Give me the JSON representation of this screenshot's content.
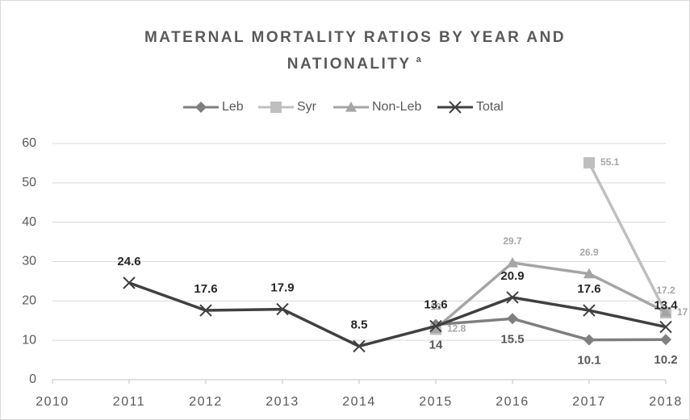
{
  "chart_data": {
    "type": "line",
    "title": [
      "MATERNAL MORTALITY RATIOS BY YEAR AND",
      "NATIONALITY"
    ],
    "title_note": "a",
    "x": [
      2011,
      2012,
      2013,
      2014,
      2015,
      2016,
      2017,
      2018
    ],
    "xlim": [
      2010,
      2018
    ],
    "xticks": [
      2010,
      2011,
      2012,
      2013,
      2014,
      2015,
      2016,
      2017,
      2018
    ],
    "ylim": [
      0,
      60
    ],
    "yticks": [
      0,
      10,
      20,
      30,
      40,
      50,
      60
    ],
    "grid": true,
    "legend": "top",
    "series": [
      {
        "name": "Leb",
        "color": "#7f7f7f",
        "marker": "diamond",
        "label_pos": "below",
        "label_color": "#595959",
        "values": [
          null,
          null,
          null,
          null,
          14,
          15.5,
          10.1,
          10.2
        ]
      },
      {
        "name": "Syr",
        "color": "#bfbfbf",
        "marker": "square",
        "label_pos": "right",
        "label_color": "#a6a6a6",
        "values": [
          null,
          null,
          null,
          null,
          12.8,
          null,
          55.1,
          17
        ]
      },
      {
        "name": "Non-Leb",
        "color": "#a5a5a5",
        "marker": "triangle",
        "label_pos": "above",
        "label_color": "#a6a6a6",
        "values": [
          null,
          null,
          null,
          null,
          13,
          29.7,
          26.9,
          17.2
        ]
      },
      {
        "name": "Total",
        "color": "#404040",
        "marker": "x",
        "label_pos": "above",
        "label_color": "#262626",
        "values": [
          24.6,
          17.6,
          17.9,
          8.5,
          13.6,
          20.9,
          17.6,
          13.4
        ]
      }
    ]
  }
}
